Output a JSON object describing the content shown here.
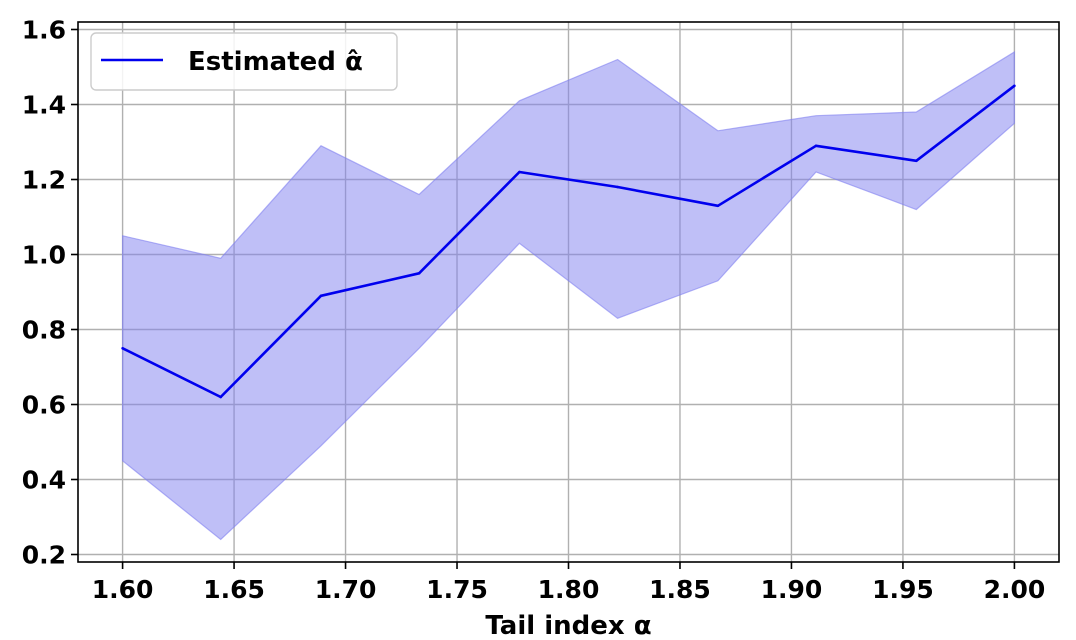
{
  "chart_data": {
    "type": "line",
    "xlabel": "Tail index α",
    "ylabel": "",
    "xlim": [
      1.58,
      2.02
    ],
    "ylim": [
      0.18,
      1.62
    ],
    "xticks": [
      1.6,
      1.65,
      1.7,
      1.75,
      1.8,
      1.85,
      1.9,
      1.95,
      2.0
    ],
    "xtick_labels": [
      "1.60",
      "1.65",
      "1.70",
      "1.75",
      "1.80",
      "1.85",
      "1.90",
      "1.95",
      "2.00"
    ],
    "yticks": [
      0.2,
      0.4,
      0.6,
      0.8,
      1.0,
      1.2,
      1.4,
      1.6
    ],
    "ytick_labels": [
      "0.2",
      "0.4",
      "0.6",
      "0.8",
      "1.0",
      "1.2",
      "1.4",
      "1.6"
    ],
    "grid": true,
    "legend_position": "top-left",
    "x": [
      1.6,
      1.644,
      1.689,
      1.733,
      1.778,
      1.822,
      1.867,
      1.911,
      1.956,
      2.0
    ],
    "series": [
      {
        "name": "Estimated α̂",
        "values": [
          0.75,
          0.62,
          0.89,
          0.95,
          1.22,
          1.18,
          1.13,
          1.29,
          1.25,
          1.45
        ],
        "lower": [
          0.45,
          0.24,
          0.49,
          0.75,
          1.03,
          0.83,
          0.93,
          1.22,
          1.12,
          1.35
        ],
        "upper": [
          1.05,
          0.99,
          1.29,
          1.16,
          1.41,
          1.52,
          1.33,
          1.37,
          1.38,
          1.54
        ],
        "color": "#0000ee",
        "band_color": "#8080f0"
      }
    ]
  }
}
